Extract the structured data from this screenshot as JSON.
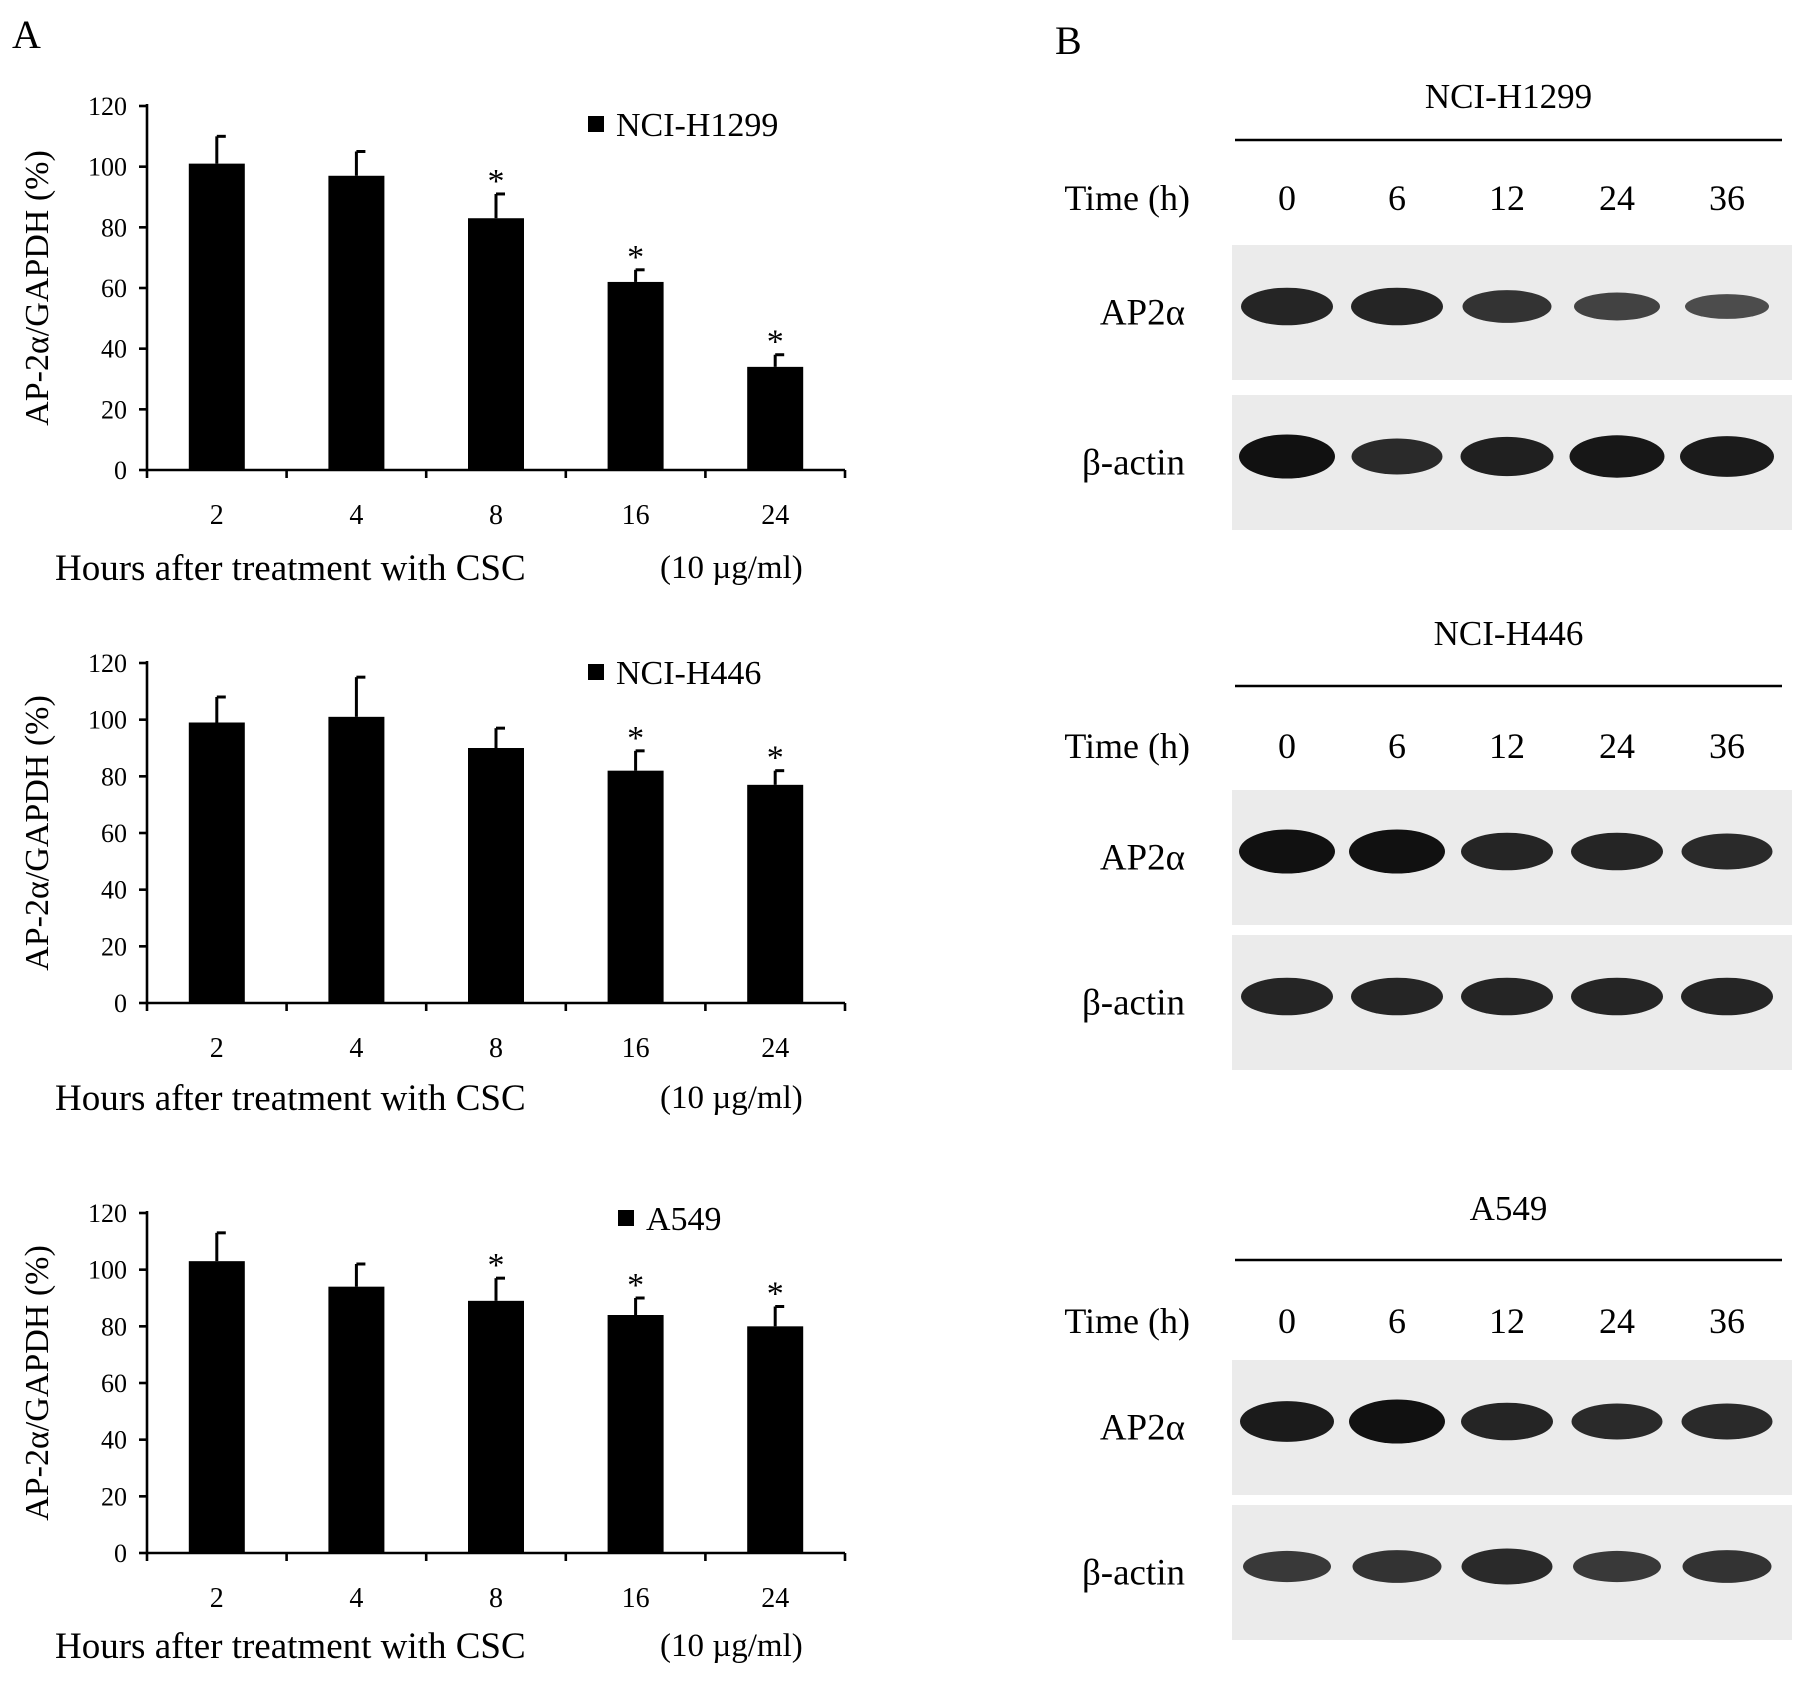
{
  "panel_a_label": "A",
  "panel_b_label": "B",
  "chart_data": [
    {
      "type": "bar",
      "legend": "NCI-H1299",
      "legend_position": "top-right",
      "ylabel": "AP-2α/GAPDH (%)",
      "xlabel": "Hours after treatment with CSC",
      "xlabel_suffix": "(10 µg/ml)",
      "categories": [
        "2",
        "4",
        "8",
        "16",
        "24"
      ],
      "values": [
        101,
        97,
        83,
        62,
        34
      ],
      "errors": [
        9,
        8,
        8,
        4,
        4
      ],
      "significant": [
        false,
        false,
        true,
        true,
        true
      ],
      "sig_marker": "*",
      "ylim": [
        0,
        120
      ],
      "yticks": [
        "0",
        "20",
        "40",
        "60",
        "80",
        "100",
        "120"
      ],
      "bar_color": "#000000"
    },
    {
      "type": "bar",
      "legend": "NCI-H446",
      "legend_position": "top-right",
      "ylabel": "AP-2α/GAPDH (%)",
      "xlabel": "Hours after treatment with CSC",
      "xlabel_suffix": "(10 µg/ml)",
      "categories": [
        "2",
        "4",
        "8",
        "16",
        "24"
      ],
      "values": [
        99,
        101,
        90,
        82,
        77
      ],
      "errors": [
        9,
        14,
        7,
        7,
        5
      ],
      "significant": [
        false,
        false,
        false,
        true,
        true
      ],
      "sig_marker": "*",
      "ylim": [
        0,
        120
      ],
      "yticks": [
        "0",
        "20",
        "40",
        "60",
        "80",
        "100",
        "120"
      ],
      "bar_color": "#000000"
    },
    {
      "type": "bar",
      "legend": "A549",
      "legend_position": "top-right",
      "ylabel": "AP-2α/GAPDH (%)",
      "xlabel": "Hours after treatment with CSC",
      "xlabel_suffix": "(10 µg/ml)",
      "categories": [
        "2",
        "4",
        "8",
        "16",
        "24"
      ],
      "values": [
        103,
        94,
        89,
        84,
        80
      ],
      "errors": [
        10,
        8,
        8,
        6,
        7
      ],
      "significant": [
        false,
        false,
        true,
        true,
        true
      ],
      "sig_marker": "*",
      "ylim": [
        0,
        120
      ],
      "yticks": [
        "0",
        "20",
        "40",
        "60",
        "80",
        "100",
        "120"
      ],
      "bar_color": "#000000"
    }
  ],
  "blots": [
    {
      "cell_line": "NCI-H1299",
      "time_label": "Time (h)",
      "timepoints": [
        "0",
        "6",
        "12",
        "24",
        "36"
      ],
      "rows": [
        {
          "label": "AP2α",
          "intensity": [
            0.8,
            0.8,
            0.65,
            0.5,
            0.4
          ]
        },
        {
          "label": "β-actin",
          "intensity": [
            1.0,
            0.75,
            0.85,
            0.95,
            0.9
          ]
        }
      ]
    },
    {
      "cell_line": "NCI-H446",
      "time_label": "Time (h)",
      "timepoints": [
        "0",
        "6",
        "12",
        "24",
        "36"
      ],
      "rows": [
        {
          "label": "AP2α",
          "intensity": [
            1.0,
            1.0,
            0.8,
            0.8,
            0.75
          ]
        },
        {
          "label": "β-actin",
          "intensity": [
            0.8,
            0.8,
            0.8,
            0.8,
            0.8
          ]
        }
      ]
    },
    {
      "cell_line": "A549",
      "time_label": "Time (h)",
      "timepoints": [
        "0",
        "6",
        "12",
        "24",
        "36"
      ],
      "rows": [
        {
          "label": "AP2α",
          "intensity": [
            0.9,
            1.0,
            0.8,
            0.75,
            0.75
          ]
        },
        {
          "label": "β-actin",
          "intensity": [
            0.6,
            0.65,
            0.75,
            0.6,
            0.65
          ]
        }
      ]
    }
  ]
}
